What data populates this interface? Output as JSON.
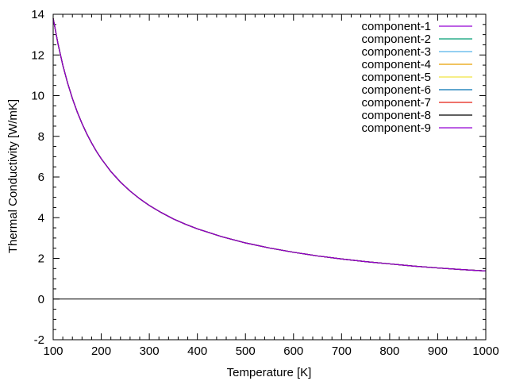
{
  "chart_data": {
    "type": "line",
    "xlabel": "Temperature [K]",
    "ylabel": "Thermal Conductivity [W/mK]",
    "xlim": [
      100,
      1000
    ],
    "ylim": [
      -2,
      14
    ],
    "x_ticks": [
      100,
      200,
      300,
      400,
      500,
      600,
      700,
      800,
      900,
      1000
    ],
    "y_ticks": [
      -2,
      0,
      2,
      4,
      6,
      8,
      10,
      12,
      14
    ],
    "x_minor_step": 20,
    "y_minor_step": 0.5,
    "grid": false,
    "legend_position": "top-right",
    "zero_line": true,
    "x": [
      100,
      110,
      120,
      130,
      140,
      150,
      160,
      170,
      180,
      190,
      200,
      220,
      240,
      260,
      280,
      300,
      325,
      350,
      375,
      400,
      450,
      500,
      550,
      600,
      650,
      700,
      750,
      800,
      850,
      900,
      950,
      1000
    ],
    "series": [
      {
        "name": "component-1",
        "color": "#9400d3",
        "values": [
          13.8,
          12.55,
          11.5,
          10.62,
          9.86,
          9.2,
          8.63,
          8.12,
          7.67,
          7.26,
          6.9,
          6.27,
          5.75,
          5.31,
          4.93,
          4.6,
          4.25,
          3.94,
          3.68,
          3.45,
          3.07,
          2.76,
          2.51,
          2.3,
          2.12,
          1.97,
          1.84,
          1.73,
          1.62,
          1.53,
          1.45,
          1.38
        ]
      },
      {
        "name": "component-2",
        "color": "#009e73",
        "values": [
          13.8,
          12.55,
          11.5,
          10.62,
          9.86,
          9.2,
          8.63,
          8.12,
          7.67,
          7.26,
          6.9,
          6.27,
          5.75,
          5.31,
          4.93,
          4.6,
          4.25,
          3.94,
          3.68,
          3.45,
          3.07,
          2.76,
          2.51,
          2.3,
          2.12,
          1.97,
          1.84,
          1.73,
          1.62,
          1.53,
          1.45,
          1.38
        ]
      },
      {
        "name": "component-3",
        "color": "#56b4e9",
        "values": [
          13.8,
          12.55,
          11.5,
          10.62,
          9.86,
          9.2,
          8.63,
          8.12,
          7.67,
          7.26,
          6.9,
          6.27,
          5.75,
          5.31,
          4.93,
          4.6,
          4.25,
          3.94,
          3.68,
          3.45,
          3.07,
          2.76,
          2.51,
          2.3,
          2.12,
          1.97,
          1.84,
          1.73,
          1.62,
          1.53,
          1.45,
          1.38
        ]
      },
      {
        "name": "component-4",
        "color": "#e69f00",
        "values": [
          13.8,
          12.55,
          11.5,
          10.62,
          9.86,
          9.2,
          8.63,
          8.12,
          7.67,
          7.26,
          6.9,
          6.27,
          5.75,
          5.31,
          4.93,
          4.6,
          4.25,
          3.94,
          3.68,
          3.45,
          3.07,
          2.76,
          2.51,
          2.3,
          2.12,
          1.97,
          1.84,
          1.73,
          1.62,
          1.53,
          1.45,
          1.38
        ]
      },
      {
        "name": "component-5",
        "color": "#f0e442",
        "values": [
          13.8,
          12.55,
          11.5,
          10.62,
          9.86,
          9.2,
          8.63,
          8.12,
          7.67,
          7.26,
          6.9,
          6.27,
          5.75,
          5.31,
          4.93,
          4.6,
          4.25,
          3.94,
          3.68,
          3.45,
          3.07,
          2.76,
          2.51,
          2.3,
          2.12,
          1.97,
          1.84,
          1.73,
          1.62,
          1.53,
          1.45,
          1.38
        ]
      },
      {
        "name": "component-6",
        "color": "#0072b2",
        "values": [
          13.8,
          12.55,
          11.5,
          10.62,
          9.86,
          9.2,
          8.63,
          8.12,
          7.67,
          7.26,
          6.9,
          6.27,
          5.75,
          5.31,
          4.93,
          4.6,
          4.25,
          3.94,
          3.68,
          3.45,
          3.07,
          2.76,
          2.51,
          2.3,
          2.12,
          1.97,
          1.84,
          1.73,
          1.62,
          1.53,
          1.45,
          1.38
        ]
      },
      {
        "name": "component-7",
        "color": "#e51e10",
        "values": [
          13.8,
          12.55,
          11.5,
          10.62,
          9.86,
          9.2,
          8.63,
          8.12,
          7.67,
          7.26,
          6.9,
          6.27,
          5.75,
          5.31,
          4.93,
          4.6,
          4.25,
          3.94,
          3.68,
          3.45,
          3.07,
          2.76,
          2.51,
          2.3,
          2.12,
          1.97,
          1.84,
          1.73,
          1.62,
          1.53,
          1.45,
          1.38
        ]
      },
      {
        "name": "component-8",
        "color": "#000000",
        "values": [
          13.8,
          12.55,
          11.5,
          10.62,
          9.86,
          9.2,
          8.63,
          8.12,
          7.67,
          7.26,
          6.9,
          6.27,
          5.75,
          5.31,
          4.93,
          4.6,
          4.25,
          3.94,
          3.68,
          3.45,
          3.07,
          2.76,
          2.51,
          2.3,
          2.12,
          1.97,
          1.84,
          1.73,
          1.62,
          1.53,
          1.45,
          1.38
        ]
      },
      {
        "name": "component-9",
        "color": "#9400d3",
        "values": [
          13.8,
          12.55,
          11.5,
          10.62,
          9.86,
          9.2,
          8.63,
          8.12,
          7.67,
          7.26,
          6.9,
          6.27,
          5.75,
          5.31,
          4.93,
          4.6,
          4.25,
          3.94,
          3.68,
          3.45,
          3.07,
          2.76,
          2.51,
          2.3,
          2.12,
          1.97,
          1.84,
          1.73,
          1.62,
          1.53,
          1.45,
          1.38
        ]
      }
    ]
  }
}
